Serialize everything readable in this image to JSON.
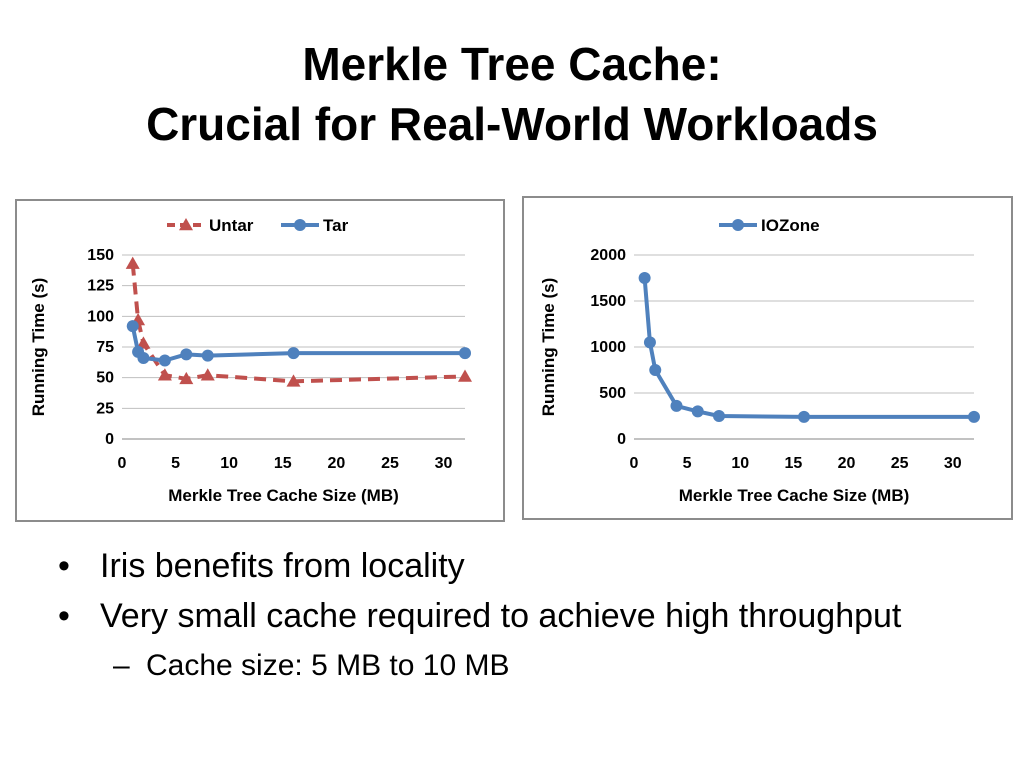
{
  "slide": {
    "title_line1": "Merkle Tree Cache:",
    "title_line2": "Crucial for Real-World Workloads"
  },
  "bullets": {
    "items": [
      {
        "marker": "•",
        "text": "Iris benefits from locality"
      },
      {
        "marker": "•",
        "text": "Very small cache required to achieve high throughput"
      }
    ],
    "sub_items": [
      {
        "marker": "–",
        "text": "Cache size: 5 MB to 10 MB"
      }
    ]
  },
  "chart_data": [
    {
      "type": "line",
      "title": "",
      "xlabel": "Merkle Tree Cache Size (MB)",
      "ylabel": "Running Time (s)",
      "xlim": [
        0,
        32
      ],
      "ylim": [
        0,
        150
      ],
      "xticks": [
        0,
        5,
        10,
        15,
        20,
        25,
        30
      ],
      "yticks": [
        0,
        25,
        50,
        75,
        100,
        125,
        150
      ],
      "grid": "horizontal",
      "legend_position": "top",
      "series": [
        {
          "name": "Untar",
          "color": "#c0504d",
          "line_style": "dashed",
          "marker": "triangle",
          "x": [
            1,
            1.5,
            2,
            4,
            6,
            8,
            16,
            32
          ],
          "y": [
            143,
            97,
            78,
            52,
            49,
            52,
            47,
            51
          ]
        },
        {
          "name": "Tar",
          "color": "#4f81bd",
          "line_style": "solid",
          "marker": "circle",
          "x": [
            1,
            1.5,
            2,
            4,
            6,
            8,
            16,
            32
          ],
          "y": [
            92,
            71,
            66,
            64,
            69,
            68,
            70,
            70
          ]
        }
      ]
    },
    {
      "type": "line",
      "title": "",
      "xlabel": "Merkle Tree Cache Size (MB)",
      "ylabel": "Running Time (s)",
      "xlim": [
        0,
        32
      ],
      "ylim": [
        0,
        2000
      ],
      "xticks": [
        0,
        5,
        10,
        15,
        20,
        25,
        30
      ],
      "yticks": [
        0,
        500,
        1000,
        1500,
        2000
      ],
      "grid": "horizontal",
      "legend_position": "top",
      "series": [
        {
          "name": "IOZone",
          "color": "#4f81bd",
          "line_style": "solid",
          "marker": "circle",
          "x": [
            1,
            1.5,
            2,
            4,
            6,
            8,
            16,
            32
          ],
          "y": [
            1750,
            1050,
            750,
            360,
            300,
            250,
            240,
            240
          ]
        }
      ]
    }
  ]
}
